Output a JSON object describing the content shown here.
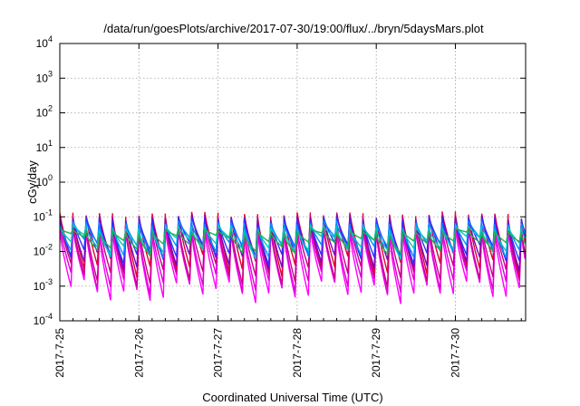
{
  "chart_data": {
    "type": "line",
    "title": "/data/run/goesPlots/archive/2017-07-30/19:00/flux/../bryn/5daysMars.plot",
    "xlabel": "Coordinated Universal Time (UTC)",
    "ylabel": "cGy/day",
    "y_scale": "log",
    "ylim": [
      0.0001,
      10000
    ],
    "y_ticks": [
      {
        "base": "10",
        "exp": "-4",
        "value": 0.0001
      },
      {
        "base": "10",
        "exp": "-3",
        "value": 0.001
      },
      {
        "base": "10",
        "exp": "-2",
        "value": 0.01
      },
      {
        "base": "10",
        "exp": "-1",
        "value": 0.1
      },
      {
        "base": "10",
        "exp": "0",
        "value": 1
      },
      {
        "base": "10",
        "exp": "1",
        "value": 10
      },
      {
        "base": "10",
        "exp": "2",
        "value": 100
      },
      {
        "base": "10",
        "exp": "3",
        "value": 1000
      },
      {
        "base": "10",
        "exp": "4",
        "value": 10000
      }
    ],
    "x_ticks": [
      "2017-7-25",
      "2017-7-26",
      "2017-7-27",
      "2017-7-28",
      "2017-7-29",
      "2017-7-30"
    ],
    "xlim": [
      "2017-07-25 00:00",
      "2017-07-30 19:00"
    ],
    "grid": true,
    "cycles_per_day": 6,
    "series": [
      {
        "color": "#ff00ff",
        "peak": 0.035,
        "trough": 0.0007
      },
      {
        "color": "#e000d0",
        "peak": 0.045,
        "trough": 0.0012
      },
      {
        "color": "#c80088",
        "peak": 0.06,
        "trough": 0.002
      },
      {
        "color": "#e0003a",
        "peak": 0.11,
        "trough": 0.004
      },
      {
        "color": "#8000c0",
        "peak": 0.09,
        "trough": 0.006
      },
      {
        "color": "#3030ff",
        "peak": 0.08,
        "trough": 0.009
      },
      {
        "color": "#0090ff",
        "peak": 0.06,
        "trough": 0.012
      },
      {
        "color": "#00c8c8",
        "peak": 0.045,
        "trough": 0.014
      },
      {
        "color": "#20b050",
        "peak": 0.035,
        "trough": 0.016
      }
    ]
  }
}
